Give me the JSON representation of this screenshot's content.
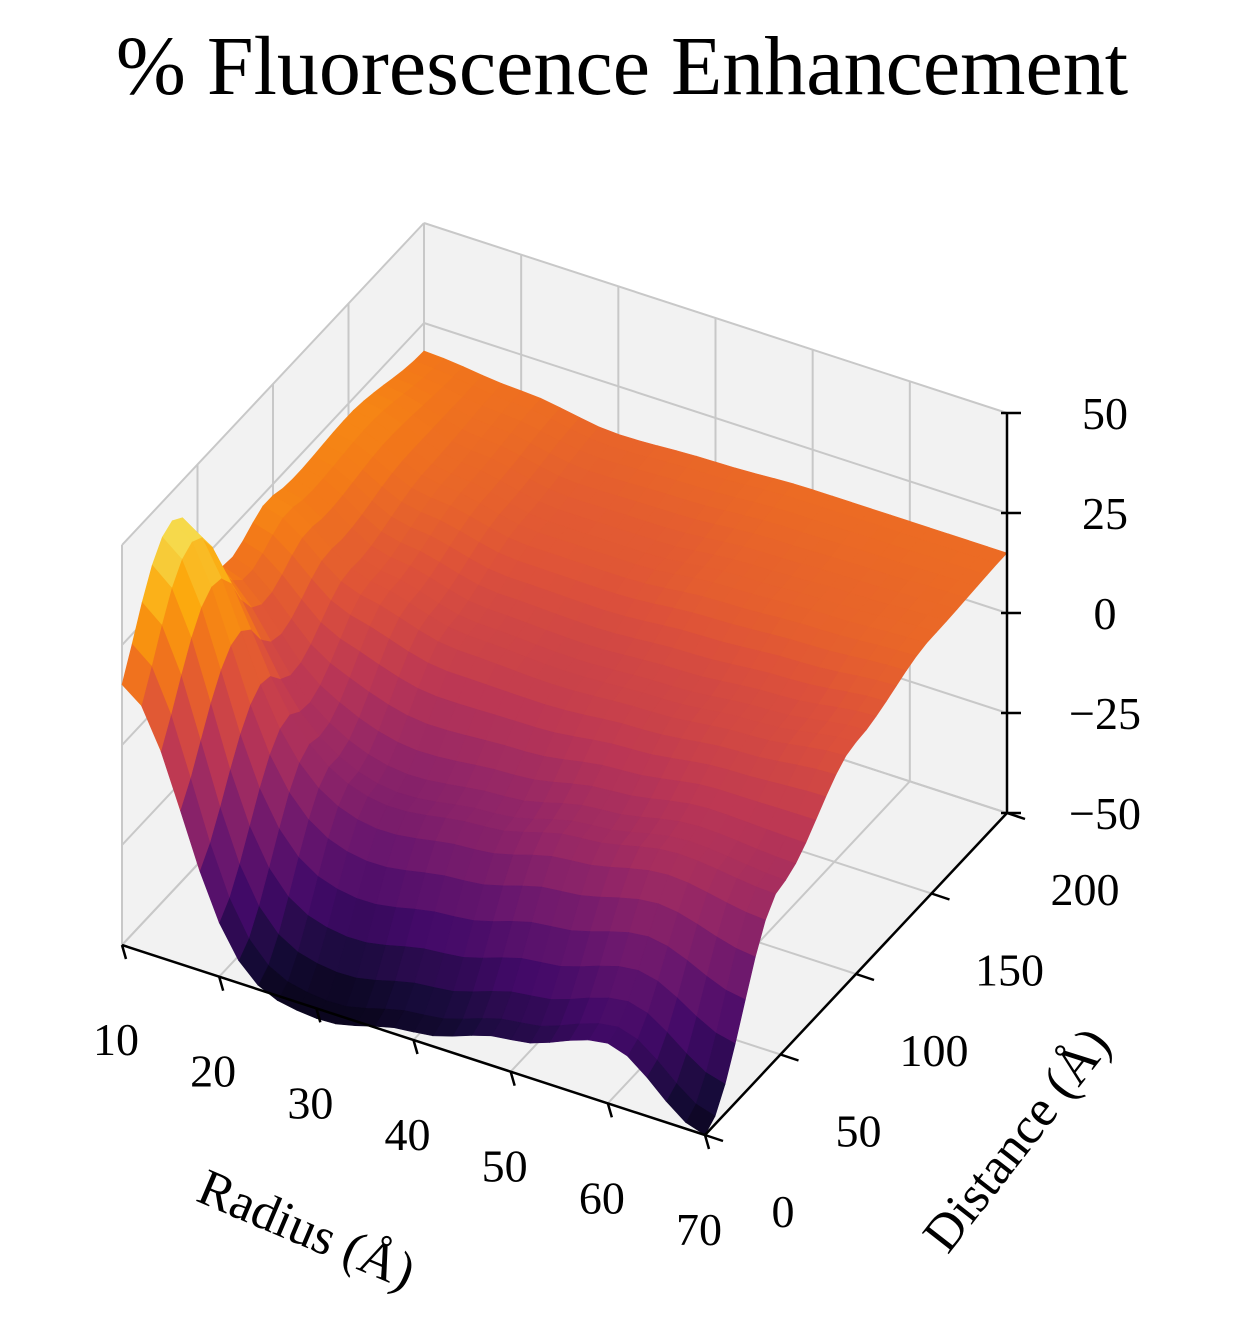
{
  "chart_data": {
    "type": "surface",
    "title": "% Fluorescence Enhancement",
    "xlabel": "Radius (Å)",
    "ylabel": "Distance (Å)",
    "zlabel": "",
    "xlim": [
      10,
      70
    ],
    "ylim": [
      0,
      200
    ],
    "zlim": [
      -50,
      50
    ],
    "x_ticks": [
      "10",
      "20",
      "30",
      "40",
      "50",
      "60",
      "70"
    ],
    "y_ticks": [
      "0",
      "50",
      "100",
      "150",
      "200"
    ],
    "z_ticks": [
      "50",
      "25",
      "0",
      "−25",
      "−50"
    ],
    "colormap": "inferno",
    "grid": true,
    "radius": [
      10,
      20,
      30,
      40,
      50,
      60,
      70
    ],
    "distance": [
      0,
      50,
      100,
      150,
      200
    ],
    "enhancement": [
      [
        -52,
        -56,
        -53,
        -48,
        -42,
        -35,
        -50
      ],
      [
        -10,
        -16,
        -18,
        -15,
        -10,
        -6,
        -8
      ],
      [
        20,
        8,
        3,
        2,
        3,
        5,
        8
      ],
      [
        22,
        14,
        10,
        10,
        12,
        13,
        14
      ],
      [
        18,
        16,
        13,
        14,
        15,
        15,
        15
      ]
    ],
    "peak": {
      "radius": 10,
      "distance": 15,
      "enhancement": 85
    }
  },
  "colors": {
    "pane": "#f2f2f2",
    "grid": "#c8c8c8",
    "axis": "#000000"
  }
}
